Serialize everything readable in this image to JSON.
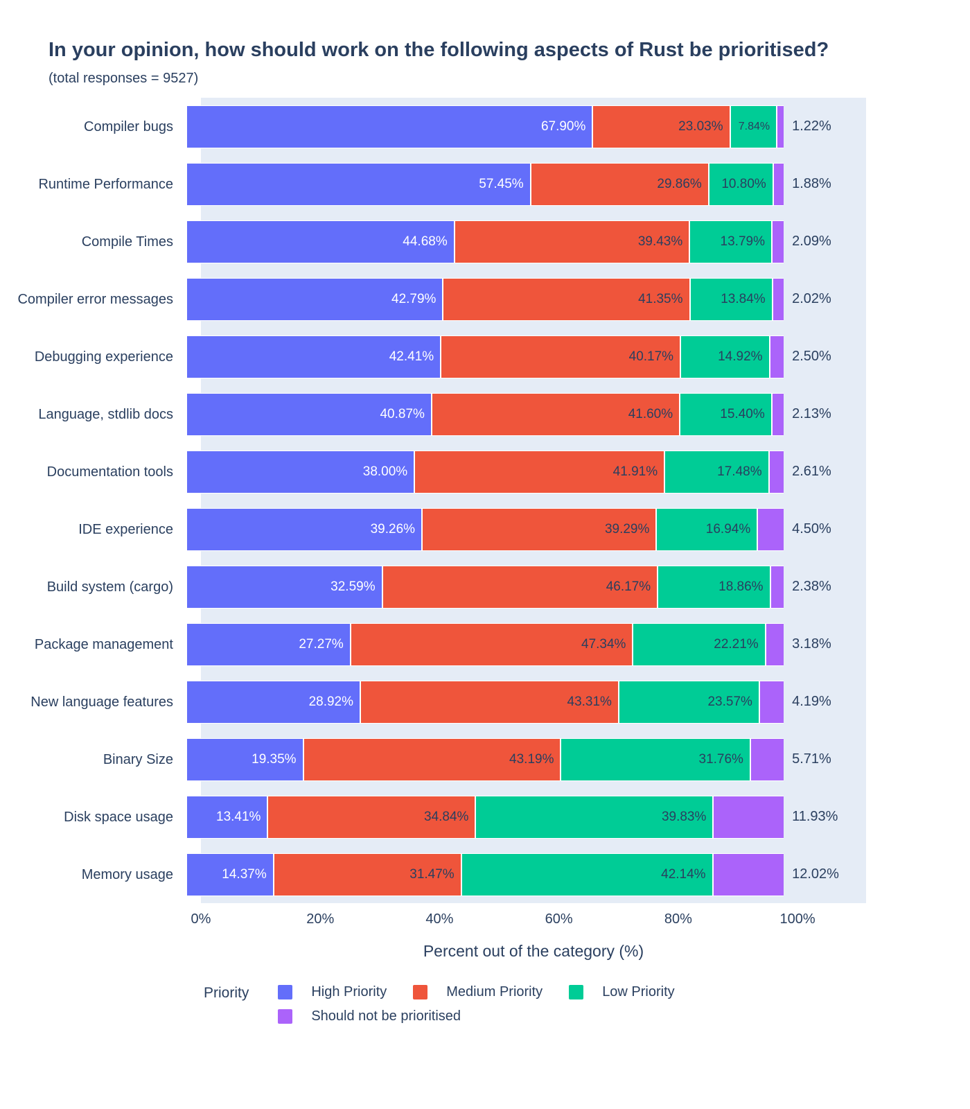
{
  "title": "In your opinion, how should work on the following aspects of Rust be prioritised?",
  "subtitle": "(total responses = 9527)",
  "colors": {
    "high_priority": "#636EFA",
    "medium_priority": "#EF553B",
    "low_priority": "#00CC96",
    "should_not": "#AB63FA",
    "plot_background": "#E5ECF6",
    "text": "#2A3F5F",
    "label_on_high": "#FFFFFF",
    "label_on_other": "#2A3F5F"
  },
  "xaxis": {
    "title": "Percent out of the category (%)",
    "ticks": [
      "0%",
      "20%",
      "40%",
      "60%",
      "80%",
      "100%"
    ]
  },
  "legend": {
    "title": "Priority",
    "rows": [
      [
        {
          "label": "High Priority",
          "color": "#636EFA",
          "key": "high-priority"
        },
        {
          "label": "Medium Priority",
          "color": "#EF553B",
          "key": "medium-priority"
        },
        {
          "label": "Low Priority",
          "color": "#00CC96",
          "key": "low-priority"
        }
      ],
      [
        {
          "label": "Should not be prioritised",
          "color": "#AB63FA",
          "key": "should-not-be-prioritised"
        }
      ]
    ]
  },
  "chart_data": {
    "type": "bar",
    "orientation": "horizontal",
    "stacked": true,
    "title": "In your opinion, how should work on the following aspects of Rust be prioritised?",
    "subtitle": "(total responses = 9527)",
    "total_responses": 9527,
    "xlabel": "Percent out of the category (%)",
    "xlim": [
      0,
      100
    ],
    "value_suffix": "%",
    "grid": false,
    "legend_position": "bottom",
    "categories": [
      "Compiler bugs",
      "Runtime Performance",
      "Compile Times",
      "Compiler error messages",
      "Debugging experience",
      "Language, stdlib docs",
      "Documentation tools",
      "IDE experience",
      "Build system (cargo)",
      "Package management",
      "New language features",
      "Binary Size",
      "Disk space usage",
      "Memory usage"
    ],
    "series": [
      {
        "name": "High Priority",
        "color": "#636EFA",
        "values": [
          67.9,
          57.45,
          44.68,
          42.79,
          42.41,
          40.87,
          38.0,
          39.26,
          32.59,
          27.27,
          28.92,
          19.35,
          13.41,
          14.37
        ]
      },
      {
        "name": "Medium Priority",
        "color": "#EF553B",
        "values": [
          23.03,
          29.86,
          39.43,
          41.35,
          40.17,
          41.6,
          41.91,
          39.29,
          46.17,
          47.34,
          43.31,
          43.19,
          34.84,
          31.47
        ]
      },
      {
        "name": "Low Priority",
        "color": "#00CC96",
        "values": [
          7.84,
          10.8,
          13.79,
          13.84,
          14.92,
          15.4,
          17.48,
          16.94,
          18.86,
          22.21,
          23.57,
          31.76,
          39.83,
          42.14
        ]
      },
      {
        "name": "Should not be prioritised",
        "color": "#AB63FA",
        "values": [
          1.22,
          1.88,
          2.09,
          2.02,
          2.5,
          2.13,
          2.61,
          4.5,
          2.38,
          3.18,
          4.19,
          5.71,
          11.93,
          12.02
        ]
      }
    ]
  }
}
